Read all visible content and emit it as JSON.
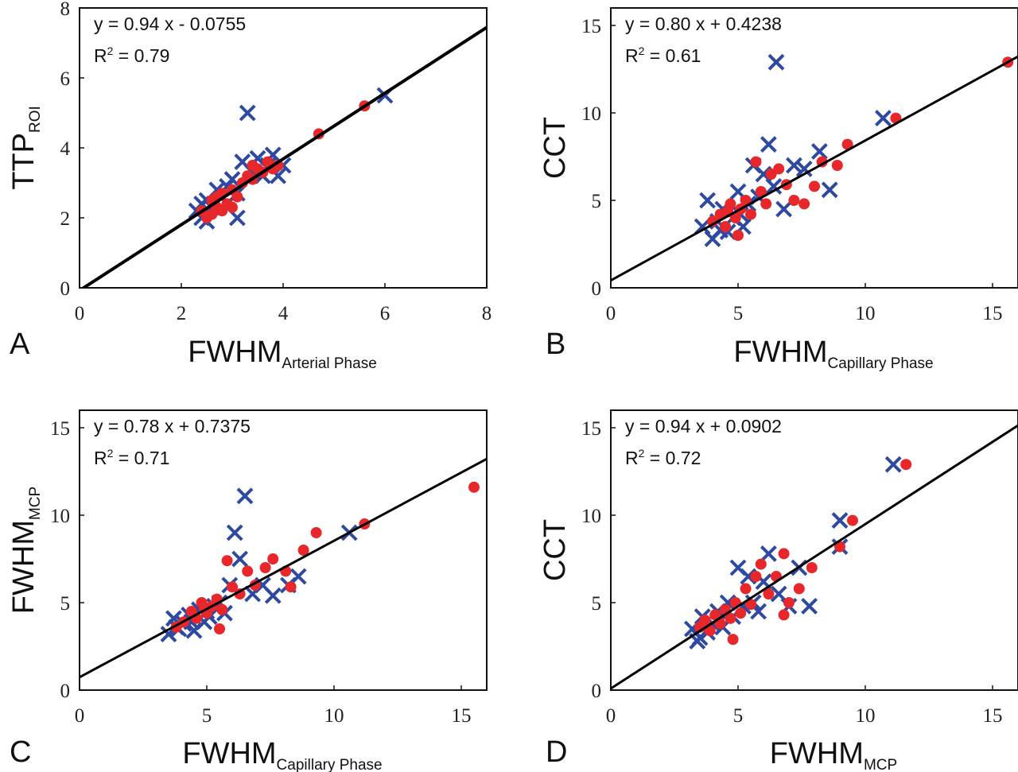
{
  "colors": {
    "series_x": "#2e4aa0",
    "series_dot": "#e8272a",
    "line": "#000000"
  },
  "chart_data": [
    {
      "type": "scatter",
      "panel_label": "A",
      "xlabel": "FWHM",
      "xlabel_sub": "Arterial Phase",
      "ylabel": "TTP",
      "ylabel_sub": "ROI",
      "xlim": [
        0,
        8
      ],
      "ylim": [
        0,
        8
      ],
      "xticks": [
        0,
        2,
        4,
        6,
        8
      ],
      "yticks": [
        0,
        2,
        4,
        6,
        8
      ],
      "equation": "y = 0.94 x - 0.0755",
      "r2_prefix": "R",
      "r2_suffix": " = 0.79",
      "fit": {
        "slope": 0.94,
        "intercept": -0.0755
      },
      "series": [
        {
          "marker": "x",
          "points": [
            [
              2.3,
              2.2
            ],
            [
              2.4,
              2.0
            ],
            [
              2.5,
              2.5
            ],
            [
              2.6,
              2.3
            ],
            [
              2.7,
              2.8
            ],
            [
              2.8,
              2.6
            ],
            [
              2.9,
              2.4
            ],
            [
              3.0,
              3.1
            ],
            [
              3.1,
              2.0
            ],
            [
              3.2,
              3.6
            ],
            [
              3.3,
              5.0
            ],
            [
              3.4,
              3.3
            ],
            [
              3.5,
              3.7
            ],
            [
              3.6,
              3.2
            ],
            [
              3.7,
              3.5
            ],
            [
              3.8,
              3.8
            ],
            [
              3.9,
              3.2
            ],
            [
              4.0,
              3.5
            ],
            [
              6.0,
              5.5
            ],
            [
              2.5,
              1.9
            ],
            [
              2.9,
              2.9
            ],
            [
              3.1,
              2.7
            ],
            [
              2.4,
              2.4
            ]
          ]
        },
        {
          "marker": "dot",
          "points": [
            [
              2.4,
              2.2
            ],
            [
              2.5,
              2.0
            ],
            [
              2.6,
              2.5
            ],
            [
              2.7,
              2.3
            ],
            [
              2.8,
              2.7
            ],
            [
              2.9,
              2.4
            ],
            [
              3.0,
              2.8
            ],
            [
              3.1,
              2.6
            ],
            [
              3.2,
              3.0
            ],
            [
              3.3,
              3.2
            ],
            [
              3.4,
              3.1
            ],
            [
              3.5,
              3.4
            ],
            [
              3.6,
              3.3
            ],
            [
              3.7,
              3.6
            ],
            [
              3.8,
              3.4
            ],
            [
              3.9,
              3.5
            ],
            [
              2.6,
              2.1
            ],
            [
              2.8,
              2.2
            ],
            [
              3.0,
              2.3
            ],
            [
              4.7,
              4.4
            ],
            [
              5.6,
              5.2
            ],
            [
              2.7,
              2.6
            ],
            [
              3.4,
              3.5
            ]
          ]
        }
      ]
    },
    {
      "type": "scatter",
      "panel_label": "B",
      "xlabel": "FWHM",
      "xlabel_sub": "Capillary Phase",
      "ylabel": "CCT",
      "ylabel_sub": "",
      "xlim": [
        0,
        16
      ],
      "ylim": [
        0,
        16
      ],
      "xticks": [
        0,
        5,
        10,
        15
      ],
      "yticks": [
        0,
        5,
        10,
        15
      ],
      "equation": "y = 0.80 x + 0.4238",
      "r2_prefix": "R",
      "r2_suffix": " = 0.61",
      "fit": {
        "slope": 0.8,
        "intercept": 0.4238
      },
      "series": [
        {
          "marker": "x",
          "points": [
            [
              3.6,
              3.5
            ],
            [
              3.8,
              5.0
            ],
            [
              4.0,
              2.8
            ],
            [
              4.2,
              3.8
            ],
            [
              4.4,
              4.5
            ],
            [
              4.6,
              3.2
            ],
            [
              4.8,
              4.0
            ],
            [
              5.0,
              5.5
            ],
            [
              5.2,
              3.5
            ],
            [
              5.4,
              4.8
            ],
            [
              5.6,
              7.0
            ],
            [
              5.8,
              5.2
            ],
            [
              6.0,
              6.5
            ],
            [
              6.2,
              8.2
            ],
            [
              6.4,
              5.8
            ],
            [
              6.5,
              12.9
            ],
            [
              6.8,
              4.5
            ],
            [
              7.2,
              7.0
            ],
            [
              7.6,
              6.8
            ],
            [
              8.2,
              7.8
            ],
            [
              8.6,
              5.6
            ],
            [
              10.7,
              9.7
            ],
            [
              4.3,
              3.3
            ],
            [
              5.1,
              4.2
            ]
          ]
        },
        {
          "marker": "dot",
          "points": [
            [
              4.0,
              3.8
            ],
            [
              4.3,
              4.2
            ],
            [
              4.5,
              3.5
            ],
            [
              4.7,
              4.8
            ],
            [
              4.9,
              4.0
            ],
            [
              5.1,
              4.5
            ],
            [
              5.3,
              5.0
            ],
            [
              5.5,
              4.2
            ],
            [
              5.7,
              7.2
            ],
            [
              5.9,
              5.5
            ],
            [
              6.1,
              4.8
            ],
            [
              6.3,
              6.5
            ],
            [
              6.6,
              6.8
            ],
            [
              6.9,
              5.9
            ],
            [
              7.2,
              5.0
            ],
            [
              7.6,
              4.8
            ],
            [
              8.0,
              5.8
            ],
            [
              8.3,
              7.2
            ],
            [
              8.9,
              7.0
            ],
            [
              9.3,
              8.2
            ],
            [
              11.2,
              9.7
            ],
            [
              15.6,
              12.9
            ],
            [
              5.0,
              3.0
            ],
            [
              4.6,
              4.4
            ]
          ]
        }
      ]
    },
    {
      "type": "scatter",
      "panel_label": "C",
      "xlabel": "FWHM",
      "xlabel_sub": "Capillary Phase",
      "ylabel": "FWHM",
      "ylabel_sub": "MCP",
      "xlim": [
        0,
        16
      ],
      "ylim": [
        0,
        16
      ],
      "xticks": [
        0,
        5,
        10,
        15
      ],
      "yticks": [
        0,
        5,
        10,
        15
      ],
      "equation": "y = 0.78 x + 0.7375",
      "r2_prefix": "R",
      "r2_suffix": " = 0.71",
      "fit": {
        "slope": 0.78,
        "intercept": 0.7375
      },
      "series": [
        {
          "marker": "x",
          "points": [
            [
              3.5,
              3.2
            ],
            [
              3.7,
              4.1
            ],
            [
              3.9,
              3.5
            ],
            [
              4.1,
              3.8
            ],
            [
              4.3,
              4.3
            ],
            [
              4.5,
              3.4
            ],
            [
              4.7,
              4.6
            ],
            [
              4.9,
              3.9
            ],
            [
              5.1,
              4.2
            ],
            [
              5.3,
              4.8
            ],
            [
              5.5,
              5.0
            ],
            [
              5.7,
              4.4
            ],
            [
              5.9,
              6.0
            ],
            [
              6.1,
              9.0
            ],
            [
              6.3,
              7.5
            ],
            [
              6.5,
              11.1
            ],
            [
              6.8,
              5.5
            ],
            [
              7.2,
              6.0
            ],
            [
              7.6,
              5.4
            ],
            [
              8.2,
              6.0
            ],
            [
              8.6,
              6.5
            ],
            [
              10.6,
              9.0
            ],
            [
              3.8,
              3.6
            ],
            [
              4.4,
              3.9
            ],
            [
              5.0,
              4.5
            ]
          ]
        },
        {
          "marker": "dot",
          "points": [
            [
              3.8,
              3.6
            ],
            [
              4.1,
              3.9
            ],
            [
              4.4,
              4.5
            ],
            [
              4.6,
              4.1
            ],
            [
              4.8,
              5.0
            ],
            [
              5.0,
              4.4
            ],
            [
              5.2,
              4.8
            ],
            [
              5.4,
              5.2
            ],
            [
              5.6,
              4.6
            ],
            [
              5.8,
              7.4
            ],
            [
              6.0,
              5.9
            ],
            [
              6.3,
              5.5
            ],
            [
              6.6,
              6.8
            ],
            [
              6.9,
              6.0
            ],
            [
              7.3,
              7.0
            ],
            [
              7.6,
              7.5
            ],
            [
              8.1,
              6.8
            ],
            [
              8.3,
              5.9
            ],
            [
              8.8,
              8.0
            ],
            [
              9.3,
              9.0
            ],
            [
              11.2,
              9.5
            ],
            [
              15.5,
              11.6
            ],
            [
              5.5,
              3.5
            ],
            [
              4.9,
              4.7
            ]
          ]
        }
      ]
    },
    {
      "type": "scatter",
      "panel_label": "D",
      "xlabel": "FWHM",
      "xlabel_sub": "MCP",
      "ylabel": "CCT",
      "ylabel_sub": "",
      "xlim": [
        0,
        16
      ],
      "ylim": [
        0,
        16
      ],
      "xticks": [
        0,
        5,
        10,
        15
      ],
      "yticks": [
        0,
        5,
        10,
        15
      ],
      "equation": "y = 0.94 x + 0.0902",
      "r2_prefix": "R",
      "r2_suffix": " = 0.72",
      "fit": {
        "slope": 0.94,
        "intercept": 0.0902
      },
      "series": [
        {
          "marker": "x",
          "points": [
            [
              3.2,
              3.5
            ],
            [
              3.4,
              2.8
            ],
            [
              3.6,
              4.2
            ],
            [
              3.8,
              3.3
            ],
            [
              4.0,
              3.8
            ],
            [
              4.2,
              4.5
            ],
            [
              4.4,
              3.6
            ],
            [
              4.6,
              5.0
            ],
            [
              4.8,
              4.2
            ],
            [
              5.0,
              7.0
            ],
            [
              5.2,
              4.8
            ],
            [
              5.4,
              6.5
            ],
            [
              5.6,
              5.0
            ],
            [
              5.8,
              4.5
            ],
            [
              6.0,
              6.2
            ],
            [
              6.2,
              7.8
            ],
            [
              6.6,
              5.5
            ],
            [
              7.0,
              4.8
            ],
            [
              7.4,
              7.0
            ],
            [
              7.8,
              4.8
            ],
            [
              9.0,
              8.2
            ],
            [
              9.0,
              9.7
            ],
            [
              11.1,
              12.9
            ],
            [
              3.5,
              3.0
            ]
          ]
        },
        {
          "marker": "dot",
          "points": [
            [
              3.5,
              3.6
            ],
            [
              3.7,
              4.0
            ],
            [
              3.9,
              3.4
            ],
            [
              4.1,
              4.3
            ],
            [
              4.3,
              3.8
            ],
            [
              4.5,
              4.6
            ],
            [
              4.7,
              4.1
            ],
            [
              4.9,
              5.0
            ],
            [
              5.1,
              4.4
            ],
            [
              5.3,
              5.8
            ],
            [
              5.5,
              4.9
            ],
            [
              5.7,
              6.5
            ],
            [
              5.9,
              7.2
            ],
            [
              6.2,
              5.5
            ],
            [
              6.5,
              6.5
            ],
            [
              6.8,
              7.8
            ],
            [
              7.0,
              5.0
            ],
            [
              7.4,
              5.8
            ],
            [
              7.9,
              7.0
            ],
            [
              9.0,
              8.2
            ],
            [
              9.5,
              9.7
            ],
            [
              11.6,
              12.9
            ],
            [
              4.8,
              2.9
            ],
            [
              6.8,
              4.3
            ]
          ]
        }
      ]
    }
  ]
}
